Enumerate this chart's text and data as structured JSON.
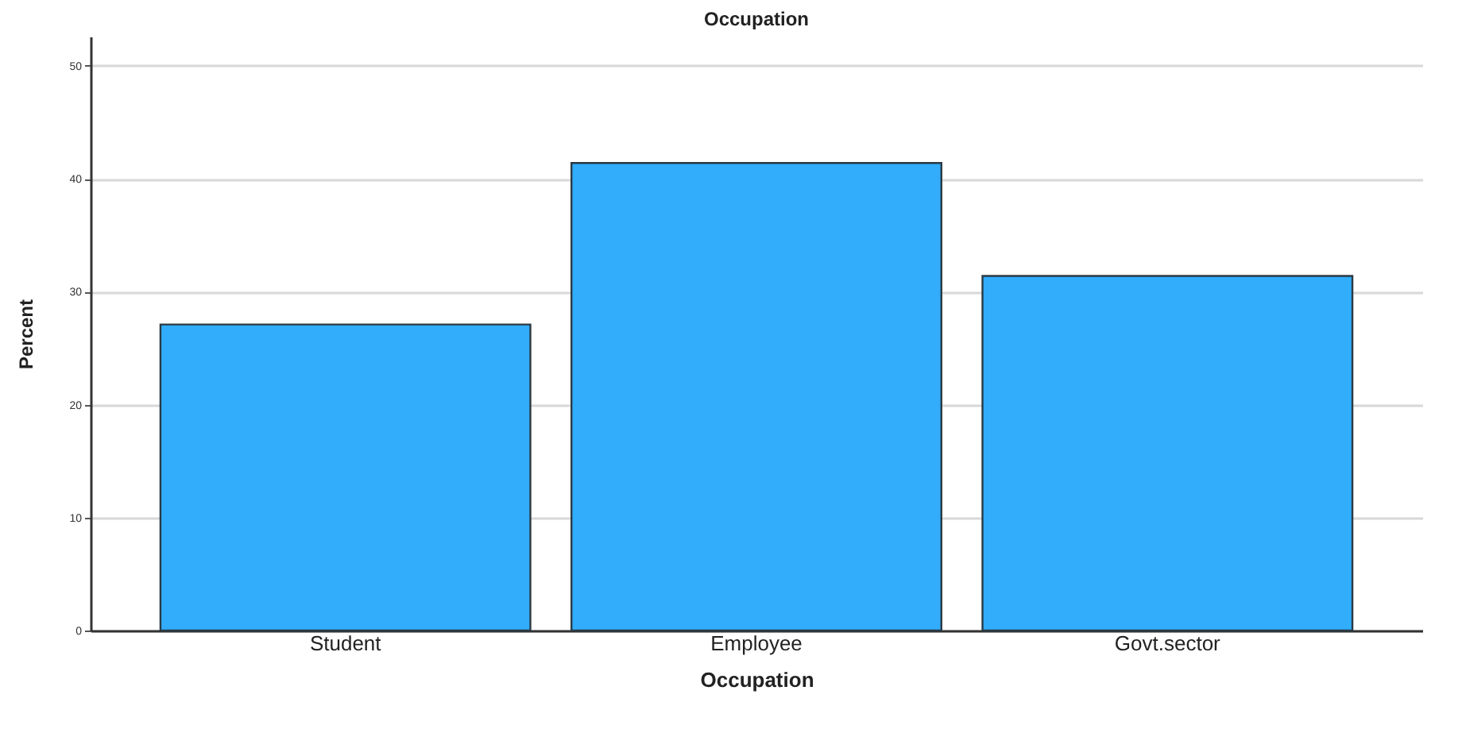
{
  "chart_data": {
    "type": "bar",
    "title": "Occupation",
    "xlabel": "Occupation",
    "ylabel": "Percent",
    "categories": [
      "Student",
      "Employee",
      "Govt.sector"
    ],
    "values": [
      27.1,
      41.4,
      31.4
    ],
    "color": "#31adfc",
    "ylim": [
      0,
      52.6
    ],
    "yticks": [
      0,
      10,
      20,
      30,
      40,
      50
    ],
    "grid": "y"
  }
}
